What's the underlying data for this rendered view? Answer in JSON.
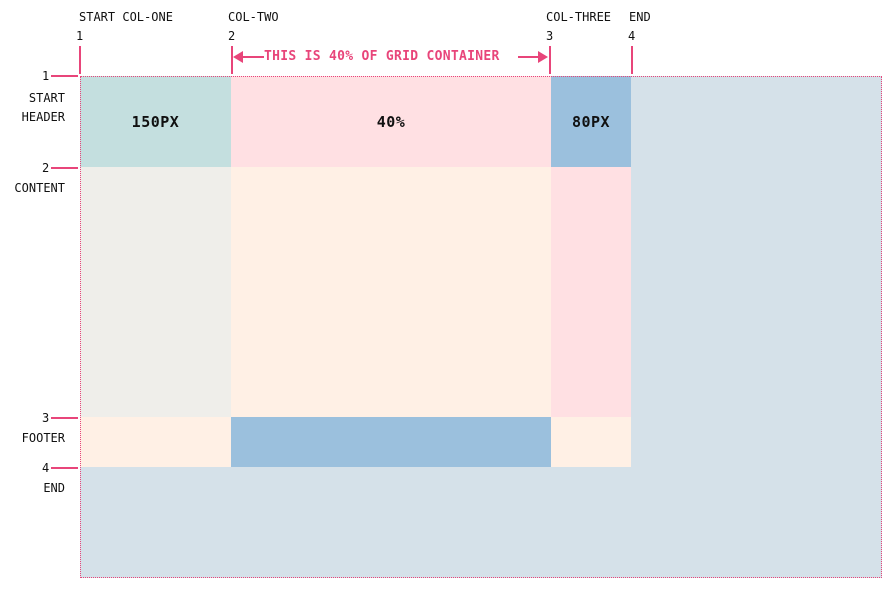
{
  "columns": {
    "top_names": [
      "START COL-ONE",
      "COL-TWO",
      "COL-THREE",
      "END"
    ],
    "line_numbers": [
      "1",
      "2",
      "3",
      "4"
    ]
  },
  "measure_label": "THIS IS 40% OF GRID CONTAINER",
  "rows": {
    "line_numbers": [
      "1",
      "2",
      "3",
      "4"
    ],
    "names": [
      "START\nHEADER",
      "CONTENT",
      "FOOTER",
      "END"
    ]
  },
  "cells": {
    "header_col1": "150PX",
    "header_col2": "40%",
    "header_col3": "80PX"
  },
  "colors": {
    "accent": "#e8457a",
    "container": "#d5e1e9",
    "teal": "#c4dfdf",
    "pink": "#ffe0e3",
    "blue": "#9bc0dd",
    "gray": "#efeeea",
    "cream": "#fff0e5"
  }
}
